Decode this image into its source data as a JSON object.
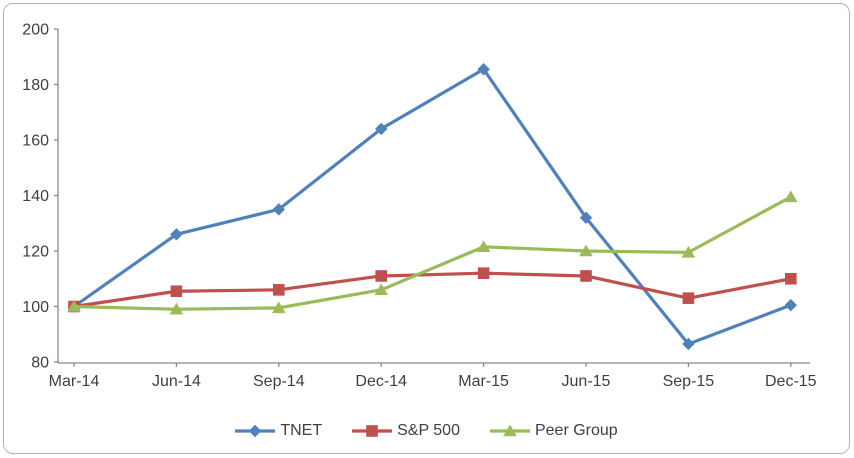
{
  "window": {
    "background": "#ffffff",
    "frame_border_color": "#b3b3b3"
  },
  "axis_style": {
    "line_color": "#898989",
    "text_color": "#3f3f3f"
  },
  "chart_data": {
    "type": "line",
    "title": "",
    "xlabel": "",
    "ylabel": "",
    "categories": [
      "Mar-14",
      "Jun-14",
      "Sep-14",
      "Dec-14",
      "Mar-15",
      "Jun-15",
      "Sep-15",
      "Dec-15"
    ],
    "series": [
      {
        "name": "TNET",
        "color": "#4F81BD",
        "marker": "diamond",
        "values": [
          100,
          126,
          135,
          164,
          185.5,
          132,
          86.5,
          100.5
        ]
      },
      {
        "name": "S&P 500",
        "color": "#C0504D",
        "marker": "square",
        "values": [
          100,
          105.5,
          106,
          111,
          112,
          111,
          103,
          110
        ]
      },
      {
        "name": "Peer Group",
        "color": "#9BBB59",
        "marker": "triangle",
        "values": [
          100,
          99,
          99.5,
          106,
          121.5,
          120,
          119.5,
          139.5
        ]
      }
    ],
    "ylim": [
      80,
      200
    ],
    "yticks": [
      80,
      100,
      120,
      140,
      160,
      180,
      200
    ],
    "grid": false,
    "legend_position": "bottom"
  }
}
